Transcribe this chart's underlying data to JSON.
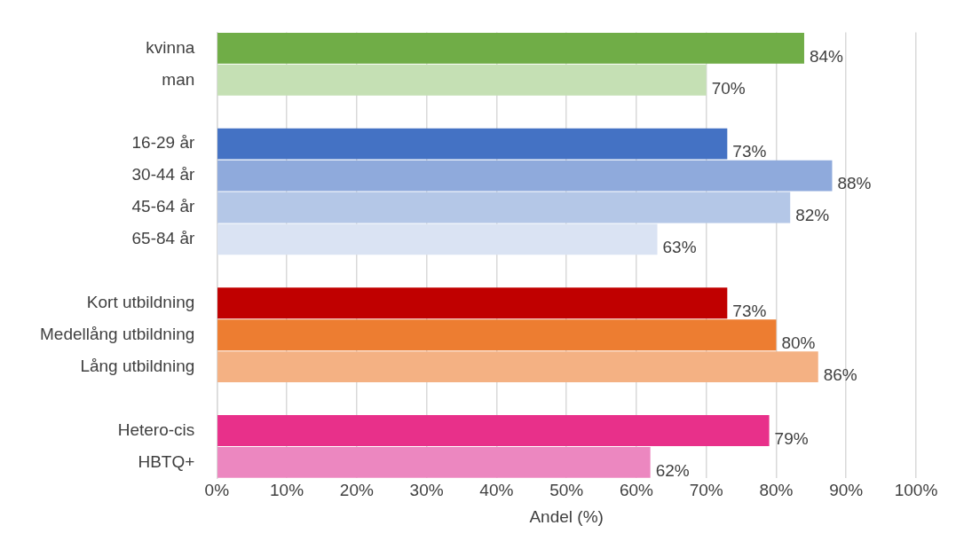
{
  "chart_data": {
    "type": "bar",
    "orientation": "horizontal",
    "xlabel": "Andel (%)",
    "categories": [
      "kvinna",
      "man",
      null,
      "16-29 år",
      "30-44 år",
      "45-64 år",
      "65-84 år",
      null,
      "Kort utbildning",
      "Medellång utbildning",
      "Lång utbildning",
      null,
      "Hetero-cis",
      "HBTQ+"
    ],
    "values": [
      84,
      70,
      null,
      73,
      88,
      82,
      63,
      null,
      73,
      80,
      86,
      null,
      79,
      62
    ],
    "value_labels": [
      "84%",
      "70%",
      null,
      "73%",
      "88%",
      "82%",
      "63%",
      null,
      "73%",
      "80%",
      "86%",
      null,
      "79%",
      "62%"
    ],
    "colors": [
      "#70ad47",
      "#c5e0b4",
      "#ffffff",
      "#4472c4",
      "#8faadc",
      "#b4c7e7",
      "#dae3f3",
      "#ffffff",
      "#c00000",
      "#ed7d31",
      "#f4b183",
      "#ffffff",
      "#e8308a",
      "#ec87c0"
    ],
    "xlim": [
      0,
      100
    ],
    "xticks": [
      {
        "value": 0,
        "label": "0%"
      },
      {
        "value": 10,
        "label": "10%"
      },
      {
        "value": 20,
        "label": "20%"
      },
      {
        "value": 30,
        "label": "30%"
      },
      {
        "value": 40,
        "label": "40%"
      },
      {
        "value": 50,
        "label": "50%"
      },
      {
        "value": 60,
        "label": "60%"
      },
      {
        "value": 70,
        "label": "70%"
      },
      {
        "value": 80,
        "label": "80%"
      },
      {
        "value": 90,
        "label": "90%"
      },
      {
        "value": 100,
        "label": "100%"
      }
    ],
    "grid": "x",
    "legend": false
  }
}
